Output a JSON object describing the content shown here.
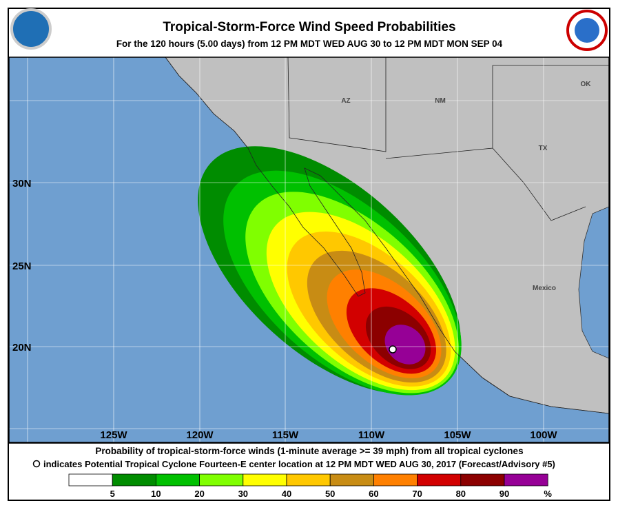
{
  "header": {
    "title": "Tropical-Storm-Force Wind Speed Probabilities",
    "subtitle": "For the 120 hours (5.00 days) from 12 PM MDT WED AUG 30 to 12 PM MDT MON SEP 04"
  },
  "map": {
    "lat_labels": [
      "30N",
      "25N",
      "20N"
    ],
    "lon_labels": [
      "125W",
      "120W",
      "115W",
      "110W",
      "105W",
      "100W"
    ],
    "place_labels": [
      "AZ",
      "NM",
      "OK",
      "TX",
      "Mexico"
    ]
  },
  "footer": {
    "line1": "Probability of tropical-storm-force winds (1-minute average >= 39 mph) from all tropical cyclones",
    "line2": "indicates Potential Tropical Cyclone Fourteen-E center location at 12 PM MDT WED AUG 30, 2017 (Forecast/Advisory #5)"
  },
  "legend": {
    "labels": [
      "5",
      "10",
      "20",
      "30",
      "40",
      "50",
      "60",
      "70",
      "80",
      "90",
      "%"
    ],
    "colors": [
      "#ffffff",
      "#008c00",
      "#00c000",
      "#80ff00",
      "#ffff00",
      "#ffc800",
      "#c88c14",
      "#ff8000",
      "#d20000",
      "#8c0000",
      "#960096"
    ]
  }
}
